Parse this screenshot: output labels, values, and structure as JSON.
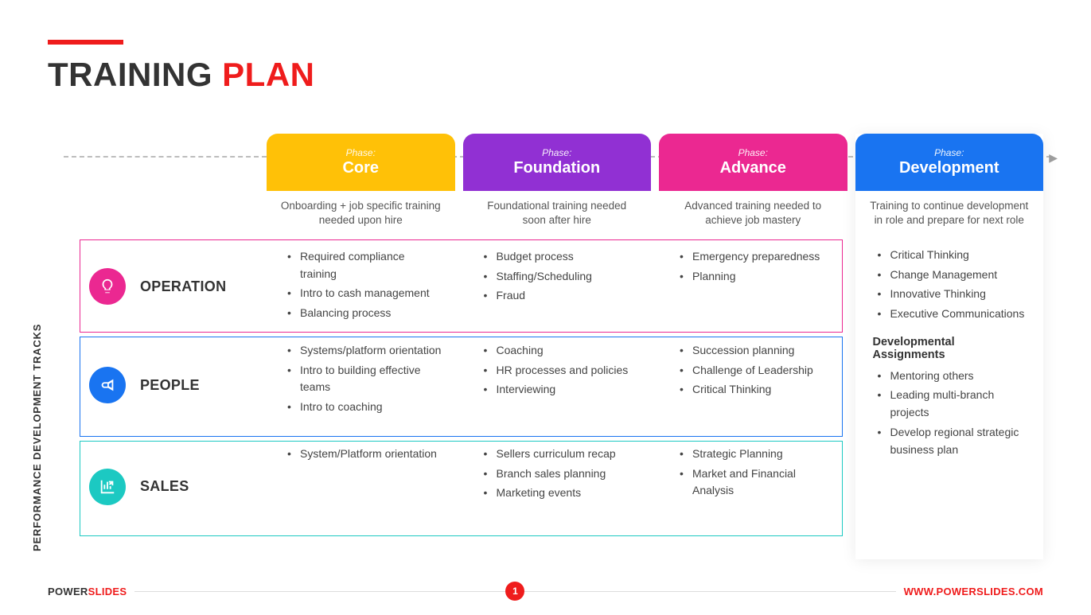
{
  "accent_color": "#ef1c1c",
  "title": {
    "part1": "TRAINING",
    "part2": " PLAN"
  },
  "vertical_label": "PERFORMANCE DEVELOPMENT TRACKS",
  "phase_label": "Phase:",
  "phases": [
    {
      "name": "Core",
      "color": "#ffc107",
      "desc": "Onboarding + job specific training needed upon hire"
    },
    {
      "name": "Foundation",
      "color": "#9130d3",
      "desc": "Foundational training needed soon after hire"
    },
    {
      "name": "Advance",
      "color": "#eb2891",
      "desc": "Advanced training needed to achieve job mastery"
    },
    {
      "name": "Development",
      "color": "#1974f1",
      "desc": "Training to continue development in role and prepare for next role"
    }
  ],
  "tracks": [
    {
      "name": "OPERATION",
      "icon": "lightbulb",
      "color": "#eb2891"
    },
    {
      "name": "PEOPLE",
      "icon": "megaphone",
      "color": "#1974f1"
    },
    {
      "name": "SALES",
      "icon": "chart",
      "color": "#1cc9c2"
    }
  ],
  "grid": [
    [
      [
        "Required compliance training",
        "Intro to cash management",
        "Balancing process"
      ],
      [
        "Budget process",
        "Staffing/Scheduling",
        "Fraud"
      ],
      [
        "Emergency preparedness",
        "Planning"
      ]
    ],
    [
      [
        "Systems/platform orientation",
        "Intro to building effective teams",
        "Intro to coaching"
      ],
      [
        "Coaching",
        "HR processes and policies",
        "Interviewing"
      ],
      [
        "Succession planning",
        "Challenge of Leadership",
        "Critical Thinking"
      ]
    ],
    [
      [
        "System/Platform orientation"
      ],
      [
        "Sellers curriculum recap",
        "Branch sales planning",
        "Marketing events"
      ],
      [
        "Strategic Planning",
        "Market and Financial Analysis"
      ]
    ]
  ],
  "development": {
    "items": [
      "Critical Thinking",
      "Change Management",
      "Innovative Thinking",
      "Executive Communications"
    ],
    "assignments_heading": "Developmental Assignments",
    "assignments": [
      "Mentoring others",
      "Leading multi-branch projects",
      "Develop regional strategic business plan"
    ]
  },
  "footer": {
    "brand1": "POWER",
    "brand2": "SLIDES",
    "page": "1",
    "url": "WWW.POWERSLIDES.COM"
  }
}
